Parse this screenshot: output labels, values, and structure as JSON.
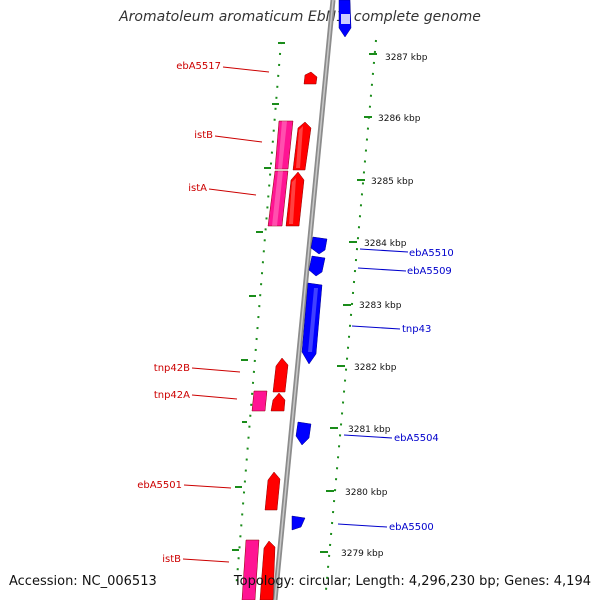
{
  "title": "Aromatoleum aromaticum EbN1, complete genome",
  "footer": {
    "accession": "Accession: NC_006513",
    "summary": "Topology: circular; Length: 4,296,230 bp; Genes: 4,194"
  },
  "colors": {
    "forward_gene": "#ff0000",
    "reverse_gene": "#0000ff",
    "repeat_gene": "#ff1493",
    "backbone": "#8c8c8c",
    "ticks": "#1a8c1a",
    "forward_label": "#cc0000",
    "reverse_label": "#0000cc"
  },
  "kbp_labels": [
    "3287 kbp",
    "3286 kbp",
    "3285 kbp",
    "3284 kbp",
    "3283 kbp",
    "3282 kbp",
    "3281 kbp",
    "3280 kbp",
    "3279 kbp"
  ],
  "forward_labels": [
    "ebA5517",
    "istB",
    "istA",
    "tnp42B",
    "tnp42A",
    "ebA5501",
    "istB"
  ],
  "reverse_labels": [
    "ebA5510",
    "ebA5509",
    "tnp43",
    "ebA5504",
    "ebA5500"
  ]
}
